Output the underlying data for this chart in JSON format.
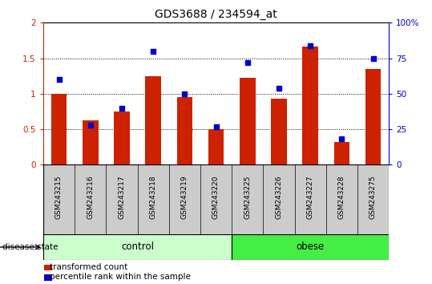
{
  "title": "GDS3688 / 234594_at",
  "samples": [
    "GSM243215",
    "GSM243216",
    "GSM243217",
    "GSM243218",
    "GSM243219",
    "GSM243220",
    "GSM243225",
    "GSM243226",
    "GSM243227",
    "GSM243228",
    "GSM243275"
  ],
  "red_values": [
    1.0,
    0.62,
    0.75,
    1.25,
    0.95,
    0.5,
    1.22,
    0.93,
    1.67,
    0.32,
    1.35
  ],
  "blue_values_pct": [
    60,
    28,
    40,
    80,
    50,
    27,
    72,
    54,
    84,
    18,
    75
  ],
  "red_ylim": [
    0,
    2
  ],
  "blue_ylim": [
    0,
    100
  ],
  "red_yticks": [
    0,
    0.5,
    1.0,
    1.5,
    2.0
  ],
  "blue_yticks": [
    0,
    25,
    50,
    75,
    100
  ],
  "red_yticklabels": [
    "0",
    "0.5",
    "1",
    "1.5",
    "2"
  ],
  "blue_yticklabels": [
    "0",
    "25",
    "50",
    "75",
    "100%"
  ],
  "bar_color": "#cc2200",
  "dot_color": "#0000cc",
  "bar_width": 0.5,
  "dot_size": 20,
  "control_samples": 6,
  "obese_samples": 5,
  "control_label": "control",
  "obese_label": "obese",
  "control_bg": "#ccffcc",
  "obese_bg": "#44ee44",
  "xlabel_bg": "#cccccc",
  "group_label": "disease state",
  "legend_items": [
    {
      "label": "transformed count",
      "color": "#cc2200"
    },
    {
      "label": "percentile rank within the sample",
      "color": "#0000cc"
    }
  ],
  "title_fontsize": 10,
  "tick_fontsize": 7.5,
  "label_fontsize": 8.5
}
